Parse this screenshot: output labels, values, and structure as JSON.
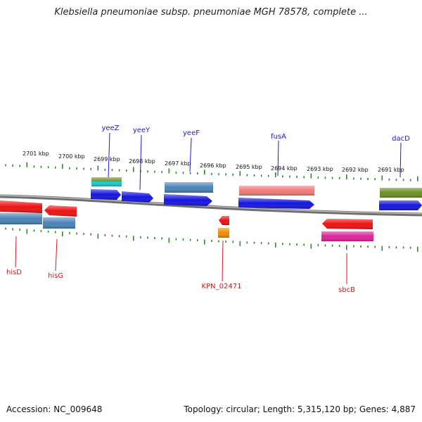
{
  "title": "Klebsiella pneumoniae subsp. pneumoniae MGH 78578, complete ...",
  "footer": {
    "accession": "Accession: NC_009648",
    "summary": "Topology: circular; Length: 5,315,120 bp; Genes: 4,887"
  },
  "colors": {
    "tick": "#2a8a2a",
    "backbone": "#8a8a8a",
    "gene_label_top": "#1a1ad0",
    "gene_label_bottom": "#d01a1a",
    "red": "#ee1111",
    "blue": "#1515e0",
    "steel": "#4a82b8",
    "salmon": "#f07b7b",
    "olive": "#6b8e23",
    "cyan": "#22c8c8",
    "orange": "#f08a00",
    "magenta": "#e0229a"
  },
  "scale_ticks": [
    "2701 kbp",
    "2700 kbp",
    "2699 kbp",
    "2698 kbp",
    "2697 kbp",
    "2696 kbp",
    "2695 kbp",
    "2694 kbp",
    "2693 kbp",
    "2692 kbp",
    "2691 kbp"
  ],
  "gene_labels_top": [
    "yeeZ",
    "yeeY",
    "yeeF",
    "fusA",
    "dacD"
  ],
  "gene_labels_bottom": [
    "hisD",
    "hisG",
    "KPN_02471",
    "sbcB"
  ]
}
